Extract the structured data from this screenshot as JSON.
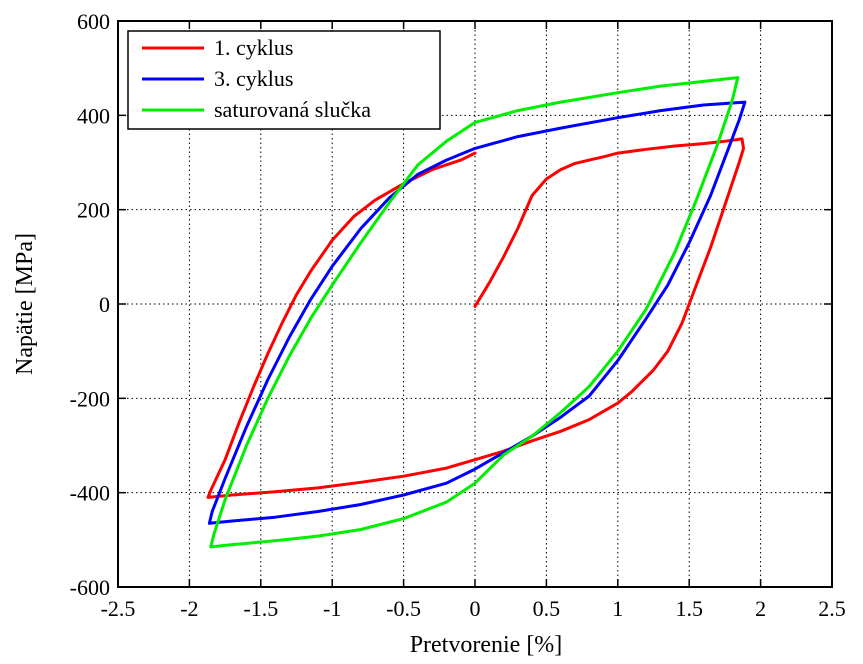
{
  "chart_data": {
    "type": "line",
    "xlabel": "Pretvorenie [%]",
    "ylabel": "Napätie [MPa]",
    "xlim": [
      -2.5,
      2.5
    ],
    "ylim": [
      -600,
      600
    ],
    "xticks": [
      -2.5,
      -2,
      -1.5,
      -1,
      -0.5,
      0,
      0.5,
      1,
      1.5,
      2,
      2.5
    ],
    "xtick_labels": [
      "-2.5",
      "-2",
      "-1.5",
      "-1",
      "-0.5",
      "0",
      "0.5",
      "1",
      "1.5",
      "2",
      "2.5"
    ],
    "yticks": [
      -600,
      -400,
      -200,
      0,
      200,
      400,
      600
    ],
    "ytick_labels": [
      "-600",
      "-400",
      "-200",
      "0",
      "200",
      "400",
      "600"
    ],
    "grid": true,
    "legend_position": "top-left",
    "series": [
      {
        "name": "1. cyklus",
        "color": "#ff0000",
        "points": [
          [
            0,
            -5
          ],
          [
            0.1,
            45
          ],
          [
            0.2,
            100
          ],
          [
            0.3,
            160
          ],
          [
            0.4,
            230
          ],
          [
            0.5,
            265
          ],
          [
            0.6,
            285
          ],
          [
            0.7,
            298
          ],
          [
            0.8,
            305
          ],
          [
            0.9,
            312
          ],
          [
            1.0,
            320
          ],
          [
            1.2,
            328
          ],
          [
            1.4,
            335
          ],
          [
            1.6,
            340
          ],
          [
            1.75,
            345
          ],
          [
            1.87,
            350
          ],
          [
            1.88,
            330
          ],
          [
            1.85,
            300
          ],
          [
            1.75,
            210
          ],
          [
            1.65,
            120
          ],
          [
            1.55,
            40
          ],
          [
            1.45,
            -40
          ],
          [
            1.35,
            -100
          ],
          [
            1.25,
            -140
          ],
          [
            1.1,
            -185
          ],
          [
            1.0,
            -210
          ],
          [
            0.8,
            -245
          ],
          [
            0.6,
            -270
          ],
          [
            0.4,
            -290
          ],
          [
            0.2,
            -312
          ],
          [
            0,
            -330
          ],
          [
            -0.2,
            -348
          ],
          [
            -0.5,
            -365
          ],
          [
            -0.8,
            -378
          ],
          [
            -1.1,
            -390
          ],
          [
            -1.4,
            -398
          ],
          [
            -1.7,
            -405
          ],
          [
            -1.87,
            -410
          ],
          [
            -1.85,
            -395
          ],
          [
            -1.75,
            -330
          ],
          [
            -1.65,
            -250
          ],
          [
            -1.55,
            -175
          ],
          [
            -1.45,
            -105
          ],
          [
            -1.35,
            -40
          ],
          [
            -1.25,
            20
          ],
          [
            -1.15,
            70
          ],
          [
            -1.0,
            135
          ],
          [
            -0.85,
            185
          ],
          [
            -0.7,
            220
          ],
          [
            -0.5,
            255
          ],
          [
            -0.3,
            285
          ],
          [
            -0.1,
            305
          ],
          [
            0,
            320
          ]
        ]
      },
      {
        "name": "3. cyklus",
        "color": "#0000ff",
        "points": [
          [
            1.89,
            428
          ],
          [
            1.85,
            390
          ],
          [
            1.75,
            310
          ],
          [
            1.65,
            230
          ],
          [
            1.5,
            130
          ],
          [
            1.35,
            40
          ],
          [
            1.2,
            -30
          ],
          [
            1.0,
            -120
          ],
          [
            0.8,
            -195
          ],
          [
            0.6,
            -240
          ],
          [
            0.4,
            -280
          ],
          [
            0.2,
            -315
          ],
          [
            0,
            -350
          ],
          [
            -0.2,
            -380
          ],
          [
            -0.5,
            -405
          ],
          [
            -0.8,
            -425
          ],
          [
            -1.1,
            -440
          ],
          [
            -1.4,
            -452
          ],
          [
            -1.7,
            -460
          ],
          [
            -1.86,
            -465
          ],
          [
            -1.84,
            -440
          ],
          [
            -1.75,
            -370
          ],
          [
            -1.6,
            -260
          ],
          [
            -1.45,
            -160
          ],
          [
            -1.3,
            -70
          ],
          [
            -1.15,
            10
          ],
          [
            -1.0,
            80
          ],
          [
            -0.8,
            160
          ],
          [
            -0.6,
            225
          ],
          [
            -0.4,
            275
          ],
          [
            -0.2,
            305
          ],
          [
            0,
            330
          ],
          [
            0.3,
            355
          ],
          [
            0.6,
            373
          ],
          [
            1.0,
            395
          ],
          [
            1.3,
            410
          ],
          [
            1.6,
            422
          ],
          [
            1.89,
            428
          ]
        ]
      },
      {
        "name": "saturovaná slučka",
        "color": "#00ee00",
        "points": [
          [
            1.84,
            480
          ],
          [
            1.8,
            430
          ],
          [
            1.7,
            340
          ],
          [
            1.55,
            220
          ],
          [
            1.4,
            110
          ],
          [
            1.2,
            -10
          ],
          [
            1.0,
            -100
          ],
          [
            0.8,
            -175
          ],
          [
            0.6,
            -230
          ],
          [
            0.4,
            -280
          ],
          [
            0.2,
            -320
          ],
          [
            0,
            -380
          ],
          [
            -0.2,
            -420
          ],
          [
            -0.5,
            -455
          ],
          [
            -0.8,
            -478
          ],
          [
            -1.1,
            -492
          ],
          [
            -1.4,
            -502
          ],
          [
            -1.7,
            -510
          ],
          [
            -1.85,
            -515
          ],
          [
            -1.83,
            -490
          ],
          [
            -1.75,
            -415
          ],
          [
            -1.6,
            -300
          ],
          [
            -1.45,
            -200
          ],
          [
            -1.3,
            -110
          ],
          [
            -1.15,
            -30
          ],
          [
            -1.0,
            40
          ],
          [
            -0.8,
            130
          ],
          [
            -0.6,
            215
          ],
          [
            -0.4,
            295
          ],
          [
            -0.2,
            345
          ],
          [
            0,
            385
          ],
          [
            0.3,
            410
          ],
          [
            0.6,
            428
          ],
          [
            1.0,
            448
          ],
          [
            1.3,
            462
          ],
          [
            1.6,
            472
          ],
          [
            1.84,
            480
          ]
        ]
      }
    ]
  }
}
